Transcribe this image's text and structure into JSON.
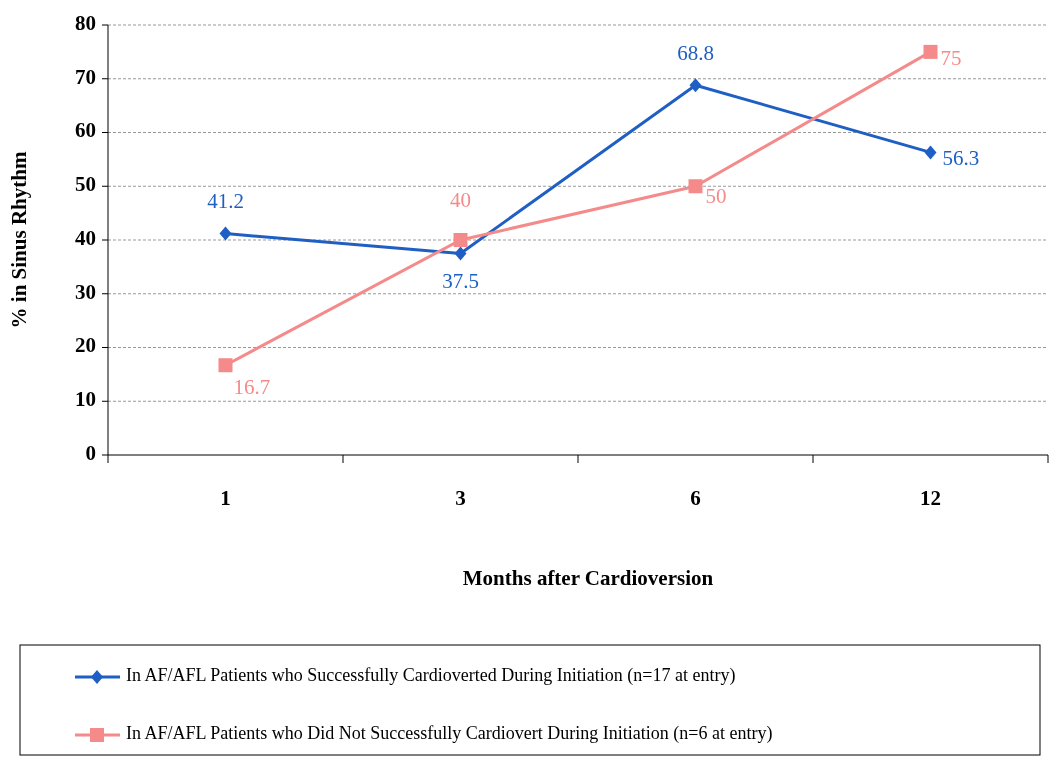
{
  "chart_data": {
    "type": "line",
    "xlabel": "Months after Cardioversion",
    "ylabel": "% in Sinus Rhythm",
    "categories": [
      "1",
      "3",
      "6",
      "12"
    ],
    "ylim": [
      0,
      80
    ],
    "yticks": [
      0,
      10,
      20,
      30,
      40,
      50,
      60,
      70,
      80
    ],
    "grid": "y",
    "legend": "bottom",
    "data_labels": true,
    "series": [
      {
        "name": "In AF/AFL Patients who Successfully Cardioverted During Initiation (n=17 at entry)",
        "color": "#1f5fc4",
        "marker": "diamond",
        "values": [
          41.2,
          37.5,
          68.8,
          56.3
        ]
      },
      {
        "name": "In AF/AFL Patients who Did Not Successfully Cardiovert During Initiation (n=6 at entry)",
        "color": "#f48a8a",
        "marker": "square",
        "values": [
          16.7,
          40,
          50,
          75
        ]
      }
    ]
  }
}
